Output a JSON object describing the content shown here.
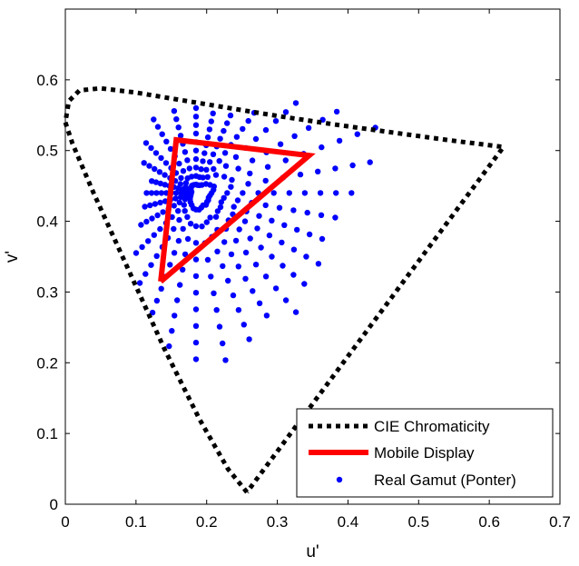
{
  "chart_data": {
    "type": "scatter",
    "title": "",
    "xlabel": "u'",
    "ylabel": "v'",
    "xlim": [
      0,
      0.7
    ],
    "ylim": [
      0,
      0.7
    ],
    "xticks": [
      0,
      0.1,
      0.2,
      0.3,
      0.4,
      0.5,
      0.6,
      0.7
    ],
    "yticks": [
      0,
      0.1,
      0.2,
      0.3,
      0.4,
      0.5,
      0.6
    ],
    "xtick_labels": [
      "0",
      "0.1",
      "0.2",
      "0.3",
      "0.4",
      "0.5",
      "0.6",
      "0.7"
    ],
    "ytick_labels": [
      "0",
      "0.1",
      "0.2",
      "0.3",
      "0.4",
      "0.5",
      "0.6"
    ],
    "grid": false,
    "legend_position": "bottom-right",
    "colors": {
      "cie": "#000000",
      "display": "#ff0000",
      "gamut": "#0000ff"
    },
    "series": [
      {
        "name": "CIE Chromaticity",
        "kind": "dotted-line",
        "x": [
          0.257,
          0.23,
          0.19,
          0.14,
          0.09,
          0.04,
          0.01,
          0.0,
          0.005,
          0.02,
          0.05,
          0.1,
          0.16,
          0.22,
          0.3,
          0.38,
          0.46,
          0.54,
          0.62,
          0.257
        ],
        "y": [
          0.017,
          0.05,
          0.12,
          0.22,
          0.33,
          0.44,
          0.51,
          0.54,
          0.57,
          0.585,
          0.588,
          0.582,
          0.572,
          0.562,
          0.549,
          0.537,
          0.526,
          0.515,
          0.505,
          0.017
        ]
      },
      {
        "name": "Mobile Display",
        "kind": "line",
        "x": [
          0.135,
          0.157,
          0.345,
          0.135
        ],
        "y": [
          0.315,
          0.515,
          0.493,
          0.315
        ]
      },
      {
        "name": "Real Gamut (Ponter)",
        "kind": "radial-points",
        "center": [
          0.185,
          0.44
        ],
        "rays": [
          {
            "angle": 90,
            "length": 0.12
          },
          {
            "angle": 78,
            "length": 0.115
          },
          {
            "angle": 66,
            "length": 0.12
          },
          {
            "angle": 54,
            "length": 0.14
          },
          {
            "angle": 42,
            "length": 0.19
          },
          {
            "angle": 30,
            "length": 0.23
          },
          {
            "angle": 20,
            "length": 0.27
          },
          {
            "angle": 10,
            "length": 0.25
          },
          {
            "angle": 0,
            "length": 0.22
          },
          {
            "angle": -10,
            "length": 0.2
          },
          {
            "angle": -20,
            "length": 0.19
          },
          {
            "angle": -30,
            "length": 0.2
          },
          {
            "angle": -40,
            "length": 0.2
          },
          {
            "angle": -50,
            "length": 0.22
          },
          {
            "angle": -60,
            "length": 0.2
          },
          {
            "angle": -70,
            "length": 0.22
          },
          {
            "angle": -80,
            "length": 0.24
          },
          {
            "angle": -90,
            "length": 0.235
          },
          {
            "angle": -100,
            "length": 0.22
          },
          {
            "angle": -110,
            "length": 0.18
          },
          {
            "angle": -122,
            "length": 0.15
          },
          {
            "angle": -135,
            "length": 0.12
          },
          {
            "angle": -150,
            "length": 0.09
          },
          {
            "angle": -165,
            "length": 0.075
          },
          {
            "angle": 180,
            "length": 0.07
          },
          {
            "angle": 165,
            "length": 0.065
          },
          {
            "angle": 150,
            "length": 0.085
          },
          {
            "angle": 135,
            "length": 0.1
          },
          {
            "angle": 120,
            "length": 0.12
          },
          {
            "angle": 105,
            "length": 0.12
          }
        ],
        "points_per_ray": 10
      }
    ]
  }
}
